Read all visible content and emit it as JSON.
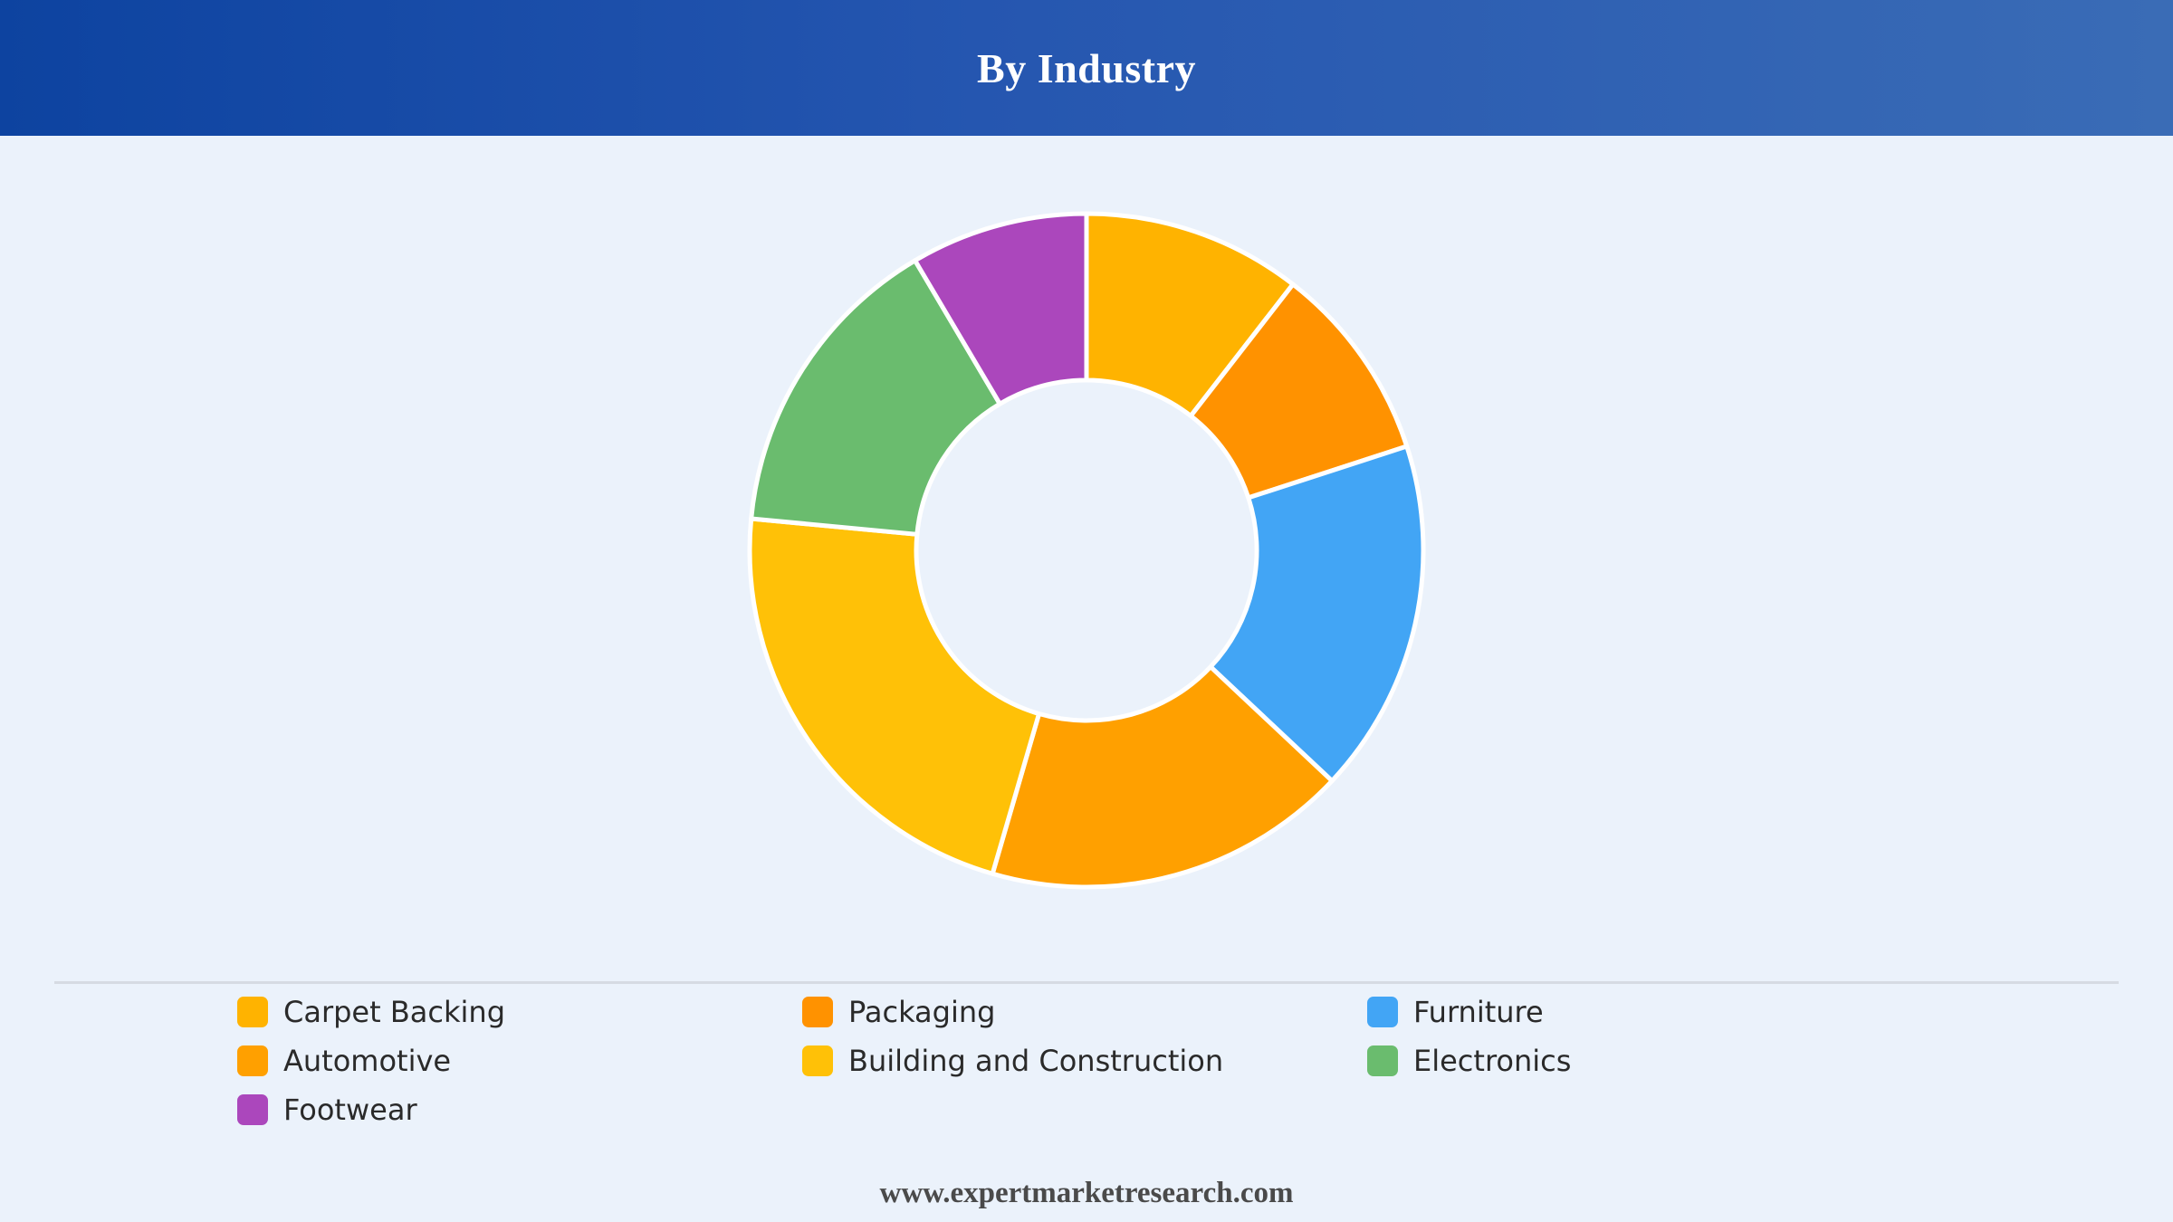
{
  "header": {
    "title": "By Industry"
  },
  "chart_data": {
    "type": "pie",
    "variant": "donut",
    "title": "By Industry",
    "categories": [
      "Carpet Backing",
      "Packaging",
      "Furniture",
      "Automotive",
      "Building and Construction",
      "Electronics",
      "Footwear"
    ],
    "values": [
      10.5,
      9.5,
      17.0,
      17.5,
      22.0,
      15.0,
      8.5
    ],
    "colors": [
      "#ffb300",
      "#ff9200",
      "#42a5f5",
      "#ffa000",
      "#ffc107",
      "#6abc6e",
      "#ab47bc"
    ],
    "legend_position": "bottom"
  },
  "legend": {
    "items": [
      {
        "label": "Carpet Backing",
        "color": "#ffb300"
      },
      {
        "label": "Packaging",
        "color": "#ff9200"
      },
      {
        "label": "Furniture",
        "color": "#42a5f5"
      },
      {
        "label": "Automotive",
        "color": "#ffa000"
      },
      {
        "label": "Building and Construction",
        "color": "#ffc107"
      },
      {
        "label": "Electronics",
        "color": "#6abc6e"
      },
      {
        "label": "Footwear",
        "color": "#ab47bc"
      }
    ]
  },
  "footer": {
    "text": "www.expertmarketresearch.com"
  }
}
